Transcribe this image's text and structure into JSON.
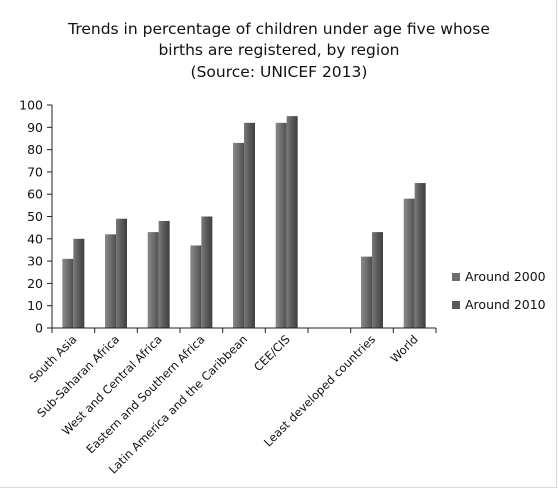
{
  "chart_data": {
    "type": "bar",
    "title_lines": [
      "Trends in percentage of children under age five  whose",
      "births are registered, by region",
      "(Source: UNICEF 2013)"
    ],
    "categories": [
      "South Asia",
      "Sub-Saharan Africa",
      "West and Central Africa",
      "Eastern and Southern Africa",
      "Latin America and the Caribbean",
      "CEE/CIS",
      "",
      "Least developed countries",
      "World"
    ],
    "series": [
      {
        "name": "Around 2000",
        "values": [
          31,
          42,
          43,
          37,
          83,
          92,
          null,
          32,
          58
        ],
        "color": "#6e6e6e"
      },
      {
        "name": "Around 2010",
        "values": [
          40,
          49,
          48,
          50,
          92,
          95,
          null,
          43,
          65
        ],
        "color": "#595959"
      }
    ],
    "ylim": [
      0,
      100
    ],
    "yticks": [
      0,
      10,
      20,
      30,
      40,
      50,
      60,
      70,
      80,
      90,
      100
    ],
    "xlabel": "",
    "ylabel": "",
    "grid": false,
    "legend_position": "right"
  }
}
